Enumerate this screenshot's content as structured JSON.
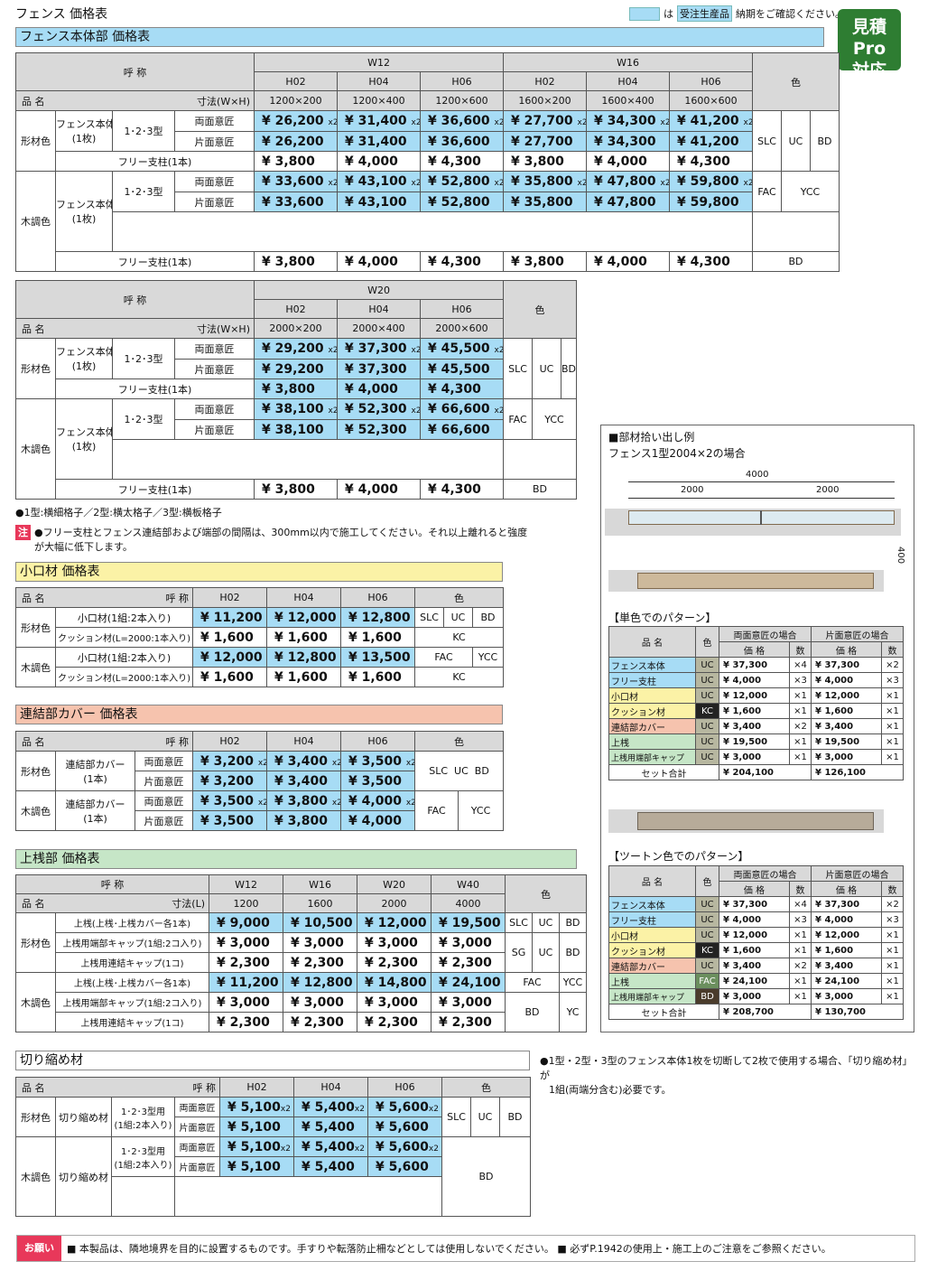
{
  "header": {
    "page_title": "フェンス 価格表",
    "legend_is": "は",
    "legend_box": "受注生産品",
    "legend_text": "納期をご確認ください。",
    "pro_badge_line1": "見積Pro",
    "pro_badge_line2": "対応"
  },
  "colors": {
    "order_blue": "#a7dcf5",
    "warn_pink": "#e8385a",
    "pro_green": "#2e7d32"
  },
  "common": {
    "yobi": "呼 称",
    "hinmei": "品 名",
    "sunpou_wh": "寸法(W×H)",
    "sunpou_l": "寸法(L)",
    "iro": "色",
    "keizaishoku": "形材色",
    "mokuchoshoku": "木調色",
    "fence_body": "フェンス本体",
    "one_sheet": "(1枚)",
    "types": "1･2･3型",
    "ryomen": "両面意匠",
    "katamen": "片面意匠",
    "free_post": "フリー支柱(1本)",
    "h02": "H02",
    "h04": "H04",
    "h06": "H06",
    "x2": "x2",
    "slc": "SLC",
    "uc": "UC",
    "bd": "BD",
    "fac": "FAC",
    "ycc": "YCC",
    "kc": "KC",
    "sg": "SG",
    "yc": "YC"
  },
  "fence_main": {
    "band": "フェンス本体部 価格表",
    "w12": "W12",
    "w16": "W16",
    "sizes": [
      "1200×200",
      "1200×400",
      "1200×600",
      "1600×200",
      "1600×400",
      "1600×600"
    ],
    "k_ryomen": [
      "¥ 26,200",
      "¥ 31,400",
      "¥ 36,600",
      "¥ 27,700",
      "¥ 34,300",
      "¥ 41,200"
    ],
    "k_katamen": [
      "¥ 26,200",
      "¥ 31,400",
      "¥ 36,600",
      "¥ 27,700",
      "¥ 34,300",
      "¥ 41,200"
    ],
    "k_post": [
      "¥ 3,800",
      "¥ 4,000",
      "¥ 4,300",
      "¥ 3,800",
      "¥ 4,000",
      "¥ 4,300"
    ],
    "m_ryomen": [
      "¥ 33,600",
      "¥ 43,100",
      "¥ 52,800",
      "¥ 35,800",
      "¥ 47,800",
      "¥ 59,800"
    ],
    "m_katamen": [
      "¥ 33,600",
      "¥ 43,100",
      "¥ 52,800",
      "¥ 35,800",
      "¥ 47,800",
      "¥ 59,800"
    ],
    "m_post": [
      "¥ 3,800",
      "¥ 4,000",
      "¥ 4,300",
      "¥ 3,800",
      "¥ 4,000",
      "¥ 4,300"
    ]
  },
  "fence_w20": {
    "w20": "W20",
    "sizes": [
      "2000×200",
      "2000×400",
      "2000×600"
    ],
    "k_ryomen": [
      "¥ 29,200",
      "¥ 37,300",
      "¥ 45,500"
    ],
    "k_katamen": [
      "¥ 29,200",
      "¥ 37,300",
      "¥ 45,500"
    ],
    "k_post": [
      "¥ 3,800",
      "¥ 4,000",
      "¥ 4,300"
    ],
    "m_ryomen": [
      "¥ 38,100",
      "¥ 52,300",
      "¥ 66,600"
    ],
    "m_katamen": [
      "¥ 38,100",
      "¥ 52,300",
      "¥ 66,600"
    ],
    "m_post": [
      "¥ 3,800",
      "¥ 4,000",
      "¥ 4,300"
    ]
  },
  "type_note": "●1型:横細格子／2型:横太格子／3型:横板格子",
  "warning": {
    "mark": "注",
    "line1": "●フリー支柱とフェンス連結部および端部の間隔は、300mm以内で施工してください。それ以上離れると強度",
    "line2": "が大幅に低下します。"
  },
  "koguchi": {
    "band": "小口材 価格表",
    "k_item1": "小口材(1組:2本入り)",
    "k_item2": "クッション材(L=2000:1本入り)",
    "k_p1": [
      "¥ 11,200",
      "¥ 12,000",
      "¥ 12,800"
    ],
    "k_p2": [
      "¥ 1,600",
      "¥ 1,600",
      "¥ 1,600"
    ],
    "m_p1": [
      "¥ 12,000",
      "¥ 12,800",
      "¥ 13,500"
    ],
    "m_p2": [
      "¥ 1,600",
      "¥ 1,600",
      "¥ 1,600"
    ]
  },
  "cover": {
    "band": "連結部カバー 価格表",
    "item": "連結部カバー",
    "qty": "(1本)",
    "k_ryomen": [
      "¥ 3,200",
      "¥ 3,400",
      "¥ 3,500"
    ],
    "k_katamen": [
      "¥ 3,200",
      "¥ 3,400",
      "¥ 3,500"
    ],
    "m_ryomen": [
      "¥ 3,500",
      "¥ 3,800",
      "¥ 4,000"
    ],
    "m_katamen": [
      "¥ 3,500",
      "¥ 3,800",
      "¥ 4,000"
    ]
  },
  "uwasan": {
    "band": "上桟部 価格表",
    "cols": [
      "W12",
      "W16",
      "W20",
      "W40"
    ],
    "lengths": [
      "1200",
      "1600",
      "2000",
      "4000"
    ],
    "i1": "上桟(上桟･上桟カバー各1本)",
    "i2": "上桟用端部キャップ(1組:2コ入り)",
    "i3": "上桟用連結キャップ(1コ)",
    "k1": [
      "¥ 9,000",
      "¥ 10,500",
      "¥ 12,000",
      "¥ 19,500"
    ],
    "k2": [
      "¥ 3,000",
      "¥ 3,000",
      "¥ 3,000",
      "¥ 3,000"
    ],
    "k3": [
      "¥ 2,300",
      "¥ 2,300",
      "¥ 2,300",
      "¥ 2,300"
    ],
    "m1": [
      "¥ 11,200",
      "¥ 12,800",
      "¥ 14,800",
      "¥ 24,100"
    ],
    "m2": [
      "¥ 3,000",
      "¥ 3,000",
      "¥ 3,000",
      "¥ 3,000"
    ],
    "m3": [
      "¥ 2,300",
      "¥ 2,300",
      "¥ 2,300",
      "¥ 2,300"
    ]
  },
  "kirichijime": {
    "band": "切り縮め材",
    "item": "切り縮め材",
    "use": "1･2･3型用",
    "set": "(1組:2本入り)",
    "k_ryomen": [
      "¥ 5,100",
      "¥ 5,400",
      "¥ 5,600"
    ],
    "k_katamen": [
      "¥ 5,100",
      "¥ 5,400",
      "¥ 5,600"
    ],
    "m_ryomen": [
      "¥ 5,100",
      "¥ 5,400",
      "¥ 5,600"
    ],
    "m_katamen": [
      "¥ 5,100",
      "¥ 5,400",
      "¥ 5,600"
    ],
    "note1": "●1型・2型・3型のフェンス本体1枚を切断して2枚で使用する場合、「切り縮め材」が",
    "note2": "1組(両端分含む)必要です。"
  },
  "example": {
    "title": "■部材拾い出し例",
    "subtitle": "フェンス1型2004×2の場合",
    "dim_total": "4000",
    "dim_a": "2000",
    "dim_b": "2000",
    "dim_h": "400",
    "mono_title": "【単色でのパターン】",
    "two_title": "【ツートン色でのパターン】",
    "h_ryomen": "両面意匠の場合",
    "h_katamen": "片面意匠の場合",
    "h_kakaku": "価 格",
    "h_kazu": "数",
    "total_label": "セット合計",
    "mono_rows": [
      {
        "name": "フェンス本体",
        "color": "UC",
        "p1": "¥ 37,300",
        "q1": "×4",
        "p2": "¥ 37,300",
        "q2": "×2"
      },
      {
        "name": "フリー支柱",
        "color": "UC",
        "p1": "¥ 4,000",
        "q1": "×3",
        "p2": "¥ 4,000",
        "q2": "×3"
      },
      {
        "name": "小口材",
        "color": "UC",
        "p1": "¥ 12,000",
        "q1": "×1",
        "p2": "¥ 12,000",
        "q2": "×1"
      },
      {
        "name": "クッション材",
        "color": "KC",
        "p1": "¥ 1,600",
        "q1": "×1",
        "p2": "¥ 1,600",
        "q2": "×1"
      },
      {
        "name": "連結部カバー",
        "color": "UC",
        "p1": "¥ 3,400",
        "q1": "×2",
        "p2": "¥ 3,400",
        "q2": "×1"
      },
      {
        "name": "上桟",
        "color": "UC",
        "p1": "¥ 19,500",
        "q1": "×1",
        "p2": "¥ 19,500",
        "q2": "×1"
      },
      {
        "name": "上桟用端部キャップ",
        "color": "UC",
        "p1": "¥ 3,000",
        "q1": "×1",
        "p2": "¥ 3,000",
        "q2": "×1"
      }
    ],
    "mono_total": [
      "¥ 204,100",
      "¥ 126,100"
    ],
    "two_rows": [
      {
        "name": "フェンス本体",
        "color": "UC",
        "p1": "¥ 37,300",
        "q1": "×4",
        "p2": "¥ 37,300",
        "q2": "×2"
      },
      {
        "name": "フリー支柱",
        "color": "UC",
        "p1": "¥ 4,000",
        "q1": "×3",
        "p2": "¥ 4,000",
        "q2": "×3"
      },
      {
        "name": "小口材",
        "color": "UC",
        "p1": "¥ 12,000",
        "q1": "×1",
        "p2": "¥ 12,000",
        "q2": "×1"
      },
      {
        "name": "クッション材",
        "color": "KC",
        "p1": "¥ 1,600",
        "q1": "×1",
        "p2": "¥ 1,600",
        "q2": "×1"
      },
      {
        "name": "連結部カバー",
        "color": "UC",
        "p1": "¥ 3,400",
        "q1": "×2",
        "p2": "¥ 3,400",
        "q2": "×1"
      },
      {
        "name": "上桟",
        "color": "FAC",
        "p1": "¥ 24,100",
        "q1": "×1",
        "p2": "¥ 24,100",
        "q2": "×1"
      },
      {
        "name": "上桟用端部キャップ",
        "color": "BD",
        "p1": "¥ 3,000",
        "q1": "×1",
        "p2": "¥ 3,000",
        "q2": "×1"
      }
    ],
    "two_total": [
      "¥ 208,700",
      "¥ 130,700"
    ]
  },
  "footer": {
    "tag": "お願い",
    "text": "■ 本製品は、隣地境界を目的に設置するものです。手すりや転落防止柵などとしては使用しないでください。 ■ 必ずP.1942の使用上・施工上のご注意をご参照ください。"
  }
}
